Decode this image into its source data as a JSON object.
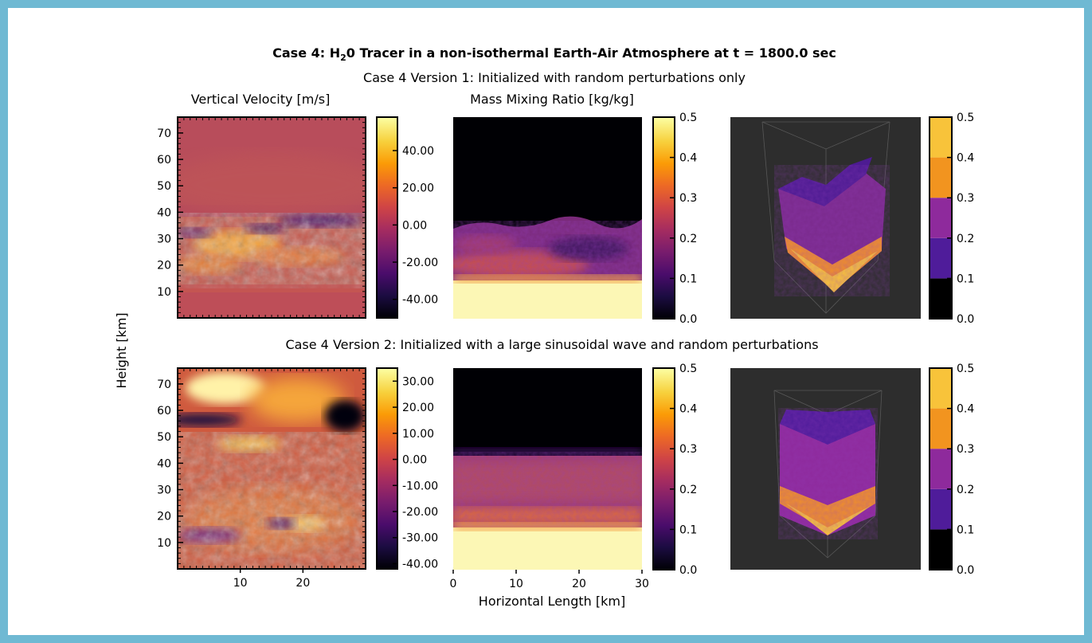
{
  "figure": {
    "title": "Case 4: H₂0 Tracer in a non-isothermal Earth-Air Atmosphere at t = 1800.0 sec",
    "title_parts": {
      "pre": "Case 4: H",
      "sub": "2",
      "post": "0 Tracer in a non-isothermal Earth-Air Atmosphere at t = 1800.0 sec"
    },
    "row1_title": "Case 4 Version 1: Initialized with random perturbations only",
    "row2_title": "Case 4 Version 2: Initialized with a large sinusoidal wave and random perturbations",
    "col1_title": "Vertical Velocity [m/s]",
    "col2_title": "Mass Mixing Ratio [kg/kg]",
    "ylabel": "Height [km]",
    "xlabel": "Horizontal Length [km]"
  },
  "colors": {
    "frame": "#6fb9d3",
    "inferno": [
      "#000004",
      "#1b0c41",
      "#4a0c6b",
      "#781c6d",
      "#a52c60",
      "#cf4446",
      "#ed6925",
      "#fb9b06",
      "#f7d13d",
      "#fcffa4"
    ],
    "volume_bins": [
      "#000000",
      "#4f1c9a",
      "#8e2a9c",
      "#f2941f",
      "#f8c33a"
    ],
    "volume_bg": "#2d2d2d"
  },
  "chart_data": [
    {
      "id": "r1c1",
      "type": "heatmap",
      "title": "Vertical Velocity [m/s]",
      "xlim": [
        0,
        30
      ],
      "ylim": [
        0,
        76
      ],
      "xticks": [
        10,
        20
      ],
      "yticks": [
        10,
        20,
        30,
        40,
        50,
        60,
        70
      ],
      "colorbar": {
        "vmin": -50,
        "vmax": 58,
        "ticks": [
          -40,
          -20,
          0,
          20,
          40
        ],
        "labels": [
          "-40.00",
          "-20.00",
          "0.00",
          "20.00",
          "40.00"
        ]
      }
    },
    {
      "id": "r1c2",
      "type": "heatmap",
      "xlim": [
        0,
        30
      ],
      "ylim": [
        0,
        76
      ],
      "colorbar": {
        "vmin": 0,
        "vmax": 0.5,
        "ticks": [
          0,
          0.1,
          0.2,
          0.3,
          0.4,
          0.5
        ],
        "labels": [
          "0.0",
          "0.1",
          "0.2",
          "0.3",
          "0.4",
          "0.5"
        ]
      }
    },
    {
      "id": "r1c3",
      "type": "heatmap",
      "colorbar": {
        "discrete": true,
        "vmin": 0,
        "vmax": 0.5,
        "ticks": [
          0,
          0.1,
          0.2,
          0.3,
          0.4,
          0.5
        ],
        "labels": [
          "0.0",
          "0.1",
          "0.2",
          "0.3",
          "0.4",
          "0.5"
        ]
      }
    },
    {
      "id": "r2c1",
      "type": "heatmap",
      "xlim": [
        0,
        30
      ],
      "ylim": [
        0,
        76
      ],
      "xticks": [
        10,
        20
      ],
      "yticks": [
        10,
        20,
        30,
        40,
        50,
        60,
        70
      ],
      "colorbar": {
        "vmin": -42,
        "vmax": 35,
        "ticks": [
          -40,
          -30,
          -20,
          -10,
          0,
          10,
          20,
          30
        ],
        "labels": [
          "-40.00",
          "-30.00",
          "-20.00",
          "-10.00",
          "0.00",
          "10.00",
          "20.00",
          "30.00"
        ]
      }
    },
    {
      "id": "r2c2",
      "type": "heatmap",
      "xlim": [
        0,
        30
      ],
      "ylim": [
        0,
        76
      ],
      "xticks": [
        0,
        10,
        20,
        30
      ],
      "colorbar": {
        "vmin": 0,
        "vmax": 0.5,
        "ticks": [
          0,
          0.1,
          0.2,
          0.3,
          0.4,
          0.5
        ],
        "labels": [
          "0.0",
          "0.1",
          "0.2",
          "0.3",
          "0.4",
          "0.5"
        ]
      }
    },
    {
      "id": "r2c3",
      "type": "heatmap",
      "colorbar": {
        "discrete": true,
        "vmin": 0,
        "vmax": 0.5,
        "ticks": [
          0,
          0.1,
          0.2,
          0.3,
          0.4,
          0.5
        ],
        "labels": [
          "0.0",
          "0.1",
          "0.2",
          "0.3",
          "0.4",
          "0.5"
        ]
      }
    }
  ]
}
